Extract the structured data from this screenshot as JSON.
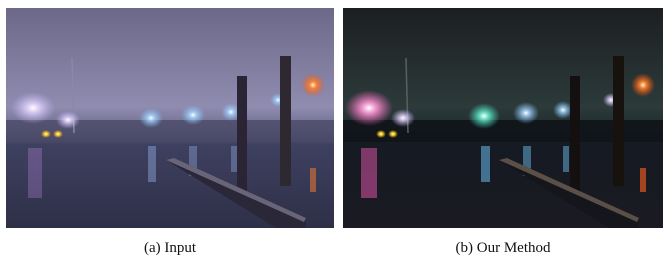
{
  "figure": {
    "panels": [
      {
        "caption": "(a) Input"
      },
      {
        "caption": "(b) Our Method"
      }
    ]
  }
}
